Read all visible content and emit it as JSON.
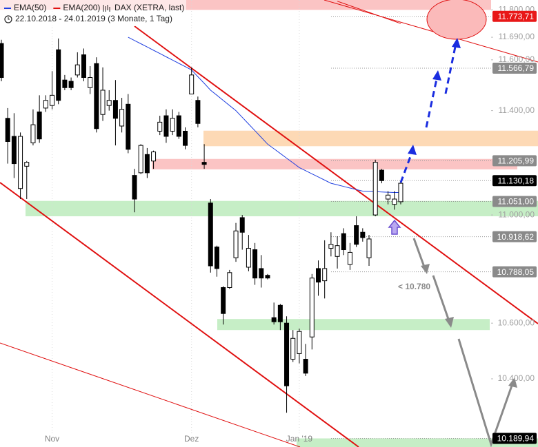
{
  "chart_data": {
    "type": "candlestick",
    "title": "DAX (XETRA, last)",
    "subtitle": "22.10.2018 - 24.01.2019  (3 Monate, 1 Tag)",
    "log_scale": true,
    "ylim": [
      10160,
      11840
    ],
    "yticks": [
      {
        "value": 10400,
        "label": "10.400,00"
      },
      {
        "value": 10600,
        "label": "10.600,00"
      },
      {
        "value": 11000,
        "label": "11.000,00"
      },
      {
        "value": 11400,
        "label": "11.400,00"
      },
      {
        "value": 11600,
        "label": "11.600,00"
      },
      {
        "value": 11690,
        "label": "11.690,00"
      },
      {
        "value": 11800,
        "label": "11.800,00"
      }
    ],
    "categories": [
      null,
      null,
      null,
      null,
      null,
      null,
      null,
      null,
      "Nov",
      null,
      null,
      null,
      null,
      null,
      null,
      null,
      null,
      null,
      null,
      null,
      null,
      null,
      null,
      null,
      null,
      null,
      null,
      null,
      null,
      null,
      "Dez",
      null,
      null,
      null,
      null,
      null,
      null,
      null,
      null,
      null,
      null,
      null,
      null,
      null,
      null,
      null,
      null,
      "Jan '19",
      null,
      null,
      null,
      null,
      null,
      null,
      null,
      null,
      null,
      null,
      null,
      null,
      null,
      null,
      null,
      null
    ],
    "ohlc": [
      [
        11665,
        11680,
        11515,
        11530
      ],
      [
        11370,
        11410,
        11195,
        11280
      ],
      [
        11300,
        11390,
        11140,
        11195
      ],
      [
        11100,
        11315,
        11060,
        11300
      ],
      [
        11185,
        11205,
        11060,
        11200
      ],
      [
        11275,
        11405,
        11265,
        11345
      ],
      [
        11395,
        11460,
        11275,
        11290
      ],
      [
        11410,
        11460,
        11395,
        11440
      ],
      [
        11420,
        11555,
        11405,
        11460
      ],
      [
        11640,
        11685,
        11425,
        11440
      ],
      [
        11520,
        11540,
        11480,
        11490
      ],
      [
        11515,
        11530,
        11480,
        11490
      ],
      [
        11540,
        11630,
        11530,
        11580
      ],
      [
        11620,
        11645,
        11515,
        11530
      ],
      [
        11490,
        11575,
        11465,
        11530
      ],
      [
        11585,
        11610,
        11315,
        11330
      ],
      [
        11385,
        11570,
        11360,
        11480
      ],
      [
        11420,
        11480,
        11400,
        11440
      ],
      [
        11440,
        11520,
        11265,
        11370
      ],
      [
        11340,
        11450,
        11315,
        11405
      ],
      [
        11425,
        11465,
        11235,
        11250
      ],
      [
        11150,
        11175,
        11010,
        11060
      ],
      [
        11160,
        11270,
        11155,
        11265
      ],
      [
        11230,
        11255,
        11140,
        11160
      ],
      [
        11205,
        11245,
        11175,
        11240
      ],
      [
        11320,
        11380,
        11305,
        11355
      ],
      [
        11380,
        11405,
        11275,
        11300
      ],
      [
        11320,
        11405,
        11305,
        11370
      ],
      [
        11380,
        11395,
        11290,
        11300
      ],
      [
        11320,
        11335,
        11250,
        11265
      ],
      [
        11465,
        11570,
        11465,
        11540
      ],
      [
        11440,
        11455,
        11335,
        11350
      ],
      [
        11200,
        11270,
        11175,
        11192
      ],
      [
        11045,
        11060,
        10785,
        10810
      ],
      [
        10880,
        10885,
        10770,
        10800
      ],
      [
        10730,
        10735,
        10595,
        10635
      ],
      [
        10730,
        10795,
        10725,
        10785
      ],
      [
        10840,
        10970,
        10825,
        10940
      ],
      [
        10990,
        11000,
        10870,
        10935
      ],
      [
        10805,
        10925,
        10790,
        10875
      ],
      [
        10870,
        10895,
        10740,
        10765
      ],
      [
        10800,
        10850,
        10730,
        10765
      ],
      [
        10775,
        10780,
        10760,
        10765
      ],
      [
        10620,
        10675,
        10595,
        10605
      ],
      [
        10665,
        10670,
        10575,
        10605
      ],
      [
        10600,
        10625,
        10280,
        10375
      ],
      [
        10470,
        10575,
        10460,
        10545
      ],
      [
        10490,
        10580,
        10455,
        10570
      ],
      [
        10470,
        10525,
        10410,
        10420
      ],
      [
        10550,
        10780,
        10505,
        10765
      ],
      [
        10800,
        10830,
        10700,
        10750
      ],
      [
        10755,
        10905,
        10690,
        10800
      ],
      [
        10875,
        10935,
        10845,
        10890
      ],
      [
        10845,
        10920,
        10800,
        10885
      ],
      [
        10930,
        10950,
        10850,
        10870
      ],
      [
        10815,
        10895,
        10795,
        10860
      ],
      [
        10960,
        10995,
        10880,
        10890
      ],
      [
        10935,
        10950,
        10900,
        10915
      ],
      [
        10840,
        10925,
        10810,
        10910
      ],
      [
        11000,
        11210,
        10995,
        11200
      ],
      [
        11170,
        11175,
        11120,
        11130
      ],
      [
        11060,
        11090,
        11040,
        11075
      ],
      [
        11040,
        11090,
        11020,
        11060
      ],
      [
        11050,
        11130,
        11040,
        11120
      ]
    ],
    "series": [
      {
        "name": "EMA(50)",
        "color": "#2040e0",
        "values": [
          null,
          null,
          null,
          null,
          null,
          null,
          null,
          null,
          null,
          null,
          null,
          null,
          null,
          null,
          null,
          null,
          null,
          null,
          null,
          null,
          11690,
          11677,
          11664,
          11651,
          11638,
          11625,
          11612,
          11599,
          11586,
          11573,
          11560,
          11533,
          11507,
          11480,
          11460,
          11440,
          11420,
          11400,
          11374,
          11348,
          11322,
          11296,
          11270,
          11252,
          11234,
          11216,
          11198,
          11180,
          11168,
          11156,
          11144,
          11132,
          11120,
          11114,
          11108,
          11102,
          11096,
          11090,
          11089,
          11088,
          11087,
          11086,
          11085,
          11085
        ]
      },
      {
        "name": "EMA(200)",
        "color": "#e01010",
        "values": [
          null,
          null,
          null,
          null,
          null,
          null,
          null,
          null,
          null,
          null,
          null,
          null,
          null,
          null,
          null,
          null,
          null,
          null,
          null,
          null,
          null,
          null,
          null,
          null,
          null,
          null,
          null,
          null,
          null,
          null,
          null,
          null,
          null,
          null,
          null,
          null,
          null,
          null,
          null,
          null,
          null,
          null,
          null,
          null,
          null,
          null,
          null,
          null,
          null,
          null,
          null,
          null,
          null,
          11835,
          11826,
          11817,
          11808,
          11799,
          11790,
          11781,
          11772,
          11763,
          11754,
          11745
        ]
      }
    ],
    "zones": [
      {
        "range": [
          11800,
          11840
        ],
        "color": "#fbc4c4"
      },
      {
        "range": [
          11262,
          11322
        ],
        "color": "#fdd9b5"
      },
      {
        "range": [
          11173,
          11213
        ],
        "color": "#fbc4c4"
      },
      {
        "range": [
          10995,
          11053
        ],
        "color": "#c6eec6"
      },
      {
        "range": [
          10575,
          10615
        ],
        "color": "#c6eec6"
      },
      {
        "range": [
          10160,
          10190
        ],
        "color": "#c6eec6"
      }
    ],
    "price_labels": [
      {
        "value": 11773.71,
        "label": "11.773,71",
        "color": "#e81818"
      },
      {
        "value": 11566.79,
        "label": "11.566,79",
        "color": "#8a8a8a"
      },
      {
        "value": 11205.99,
        "label": "11.205,99",
        "color": "#8a8a8a"
      },
      {
        "value": 11130.18,
        "label": "11.130,18",
        "color": "#000000"
      },
      {
        "value": 11051,
        "label": "11.051,00",
        "color": "#8a8a8a"
      },
      {
        "value": 10918.62,
        "label": "10.918,62",
        "color": "#8a8a8a"
      },
      {
        "value": 10788.05,
        "label": "10.788,05",
        "color": "#8a8a8a"
      },
      {
        "value": 10189.94,
        "label": "10.189,94",
        "color": "#000000"
      }
    ],
    "annotation": "< 10.780"
  }
}
